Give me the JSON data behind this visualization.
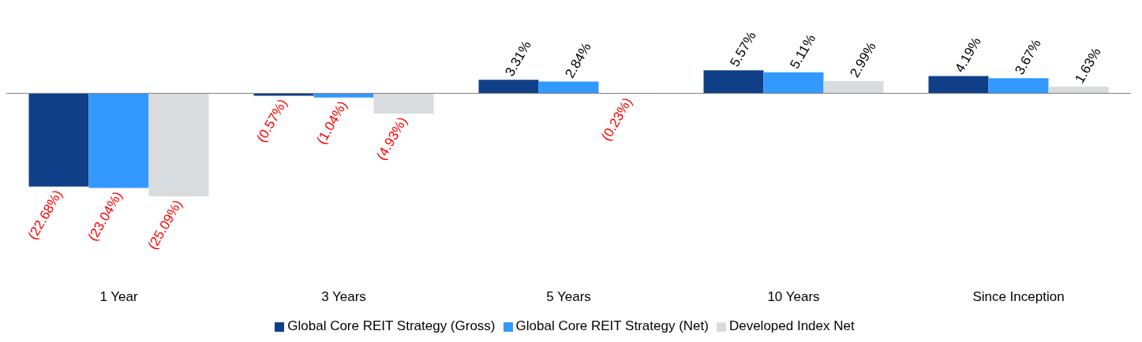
{
  "chart_data": {
    "type": "bar",
    "categories": [
      "1 Year",
      "3 Years",
      "5 Years",
      "10 Years",
      "Since Inception"
    ],
    "series": [
      {
        "name": "Global Core REIT Strategy (Gross)",
        "color": "#0f3f87",
        "values": [
          -22.68,
          -0.57,
          3.31,
          5.57,
          4.19
        ],
        "value_labels": [
          "(22.68%)",
          "(0.57%)",
          "3.31%",
          "5.57%",
          "4.19%"
        ]
      },
      {
        "name": "Global Core REIT Strategy (Net)",
        "color": "#3399ff",
        "values": [
          -23.04,
          -1.04,
          2.84,
          5.11,
          3.67
        ],
        "value_labels": [
          "(23.04%)",
          "(1.04%)",
          "2.84%",
          "5.11%",
          "3.67%"
        ]
      },
      {
        "name": "Developed Index Net",
        "color": "#d9dcdf",
        "values": [
          -25.09,
          -4.93,
          -0.23,
          2.99,
          1.63
        ],
        "value_labels": [
          "(25.09%)",
          "(4.93%)",
          "(0.23%)",
          "2.99%",
          "1.63%"
        ]
      }
    ],
    "legend": "bottom"
  }
}
